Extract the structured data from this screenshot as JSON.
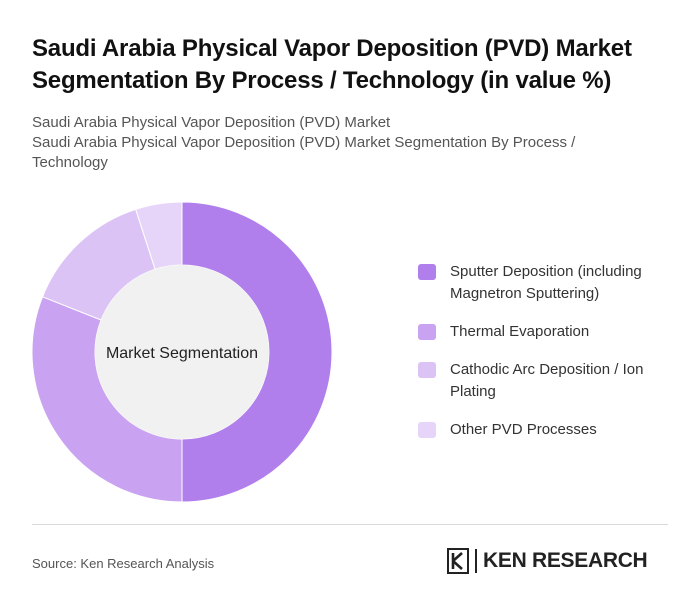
{
  "header": {
    "title": "Saudi Arabia Physical Vapor Deposition (PVD) Market Segmentation By Process / Technology (in value %)",
    "subtitle_line1": "Saudi Arabia Physical Vapor Deposition (PVD) Market",
    "subtitle_line2": "Saudi Arabia Physical Vapor Deposition (PVD) Market Segmentation By Process / Technology"
  },
  "chart_data": {
    "type": "pie",
    "center_label": "Market Segmentation",
    "legend_position": "right",
    "slices": [
      {
        "label": "Sputter Deposition (including Magnetron Sputtering)",
        "value": 50,
        "color": "#b07fec"
      },
      {
        "label": "Thermal Evaporation",
        "value": 31,
        "color": "#c9a3f1"
      },
      {
        "label": "Cathodic Arc Deposition / Ion Plating",
        "value": 14,
        "color": "#dcc3f6"
      },
      {
        "label": "Other PVD Processes",
        "value": 5,
        "color": "#e7d5f9"
      }
    ]
  },
  "footer": {
    "source": "Source: Ken Research Analysis",
    "logo_text": "KEN RESEARCH"
  },
  "colors": {
    "center_fill": "#f1f1f1",
    "divider": "#d9d9d9"
  }
}
